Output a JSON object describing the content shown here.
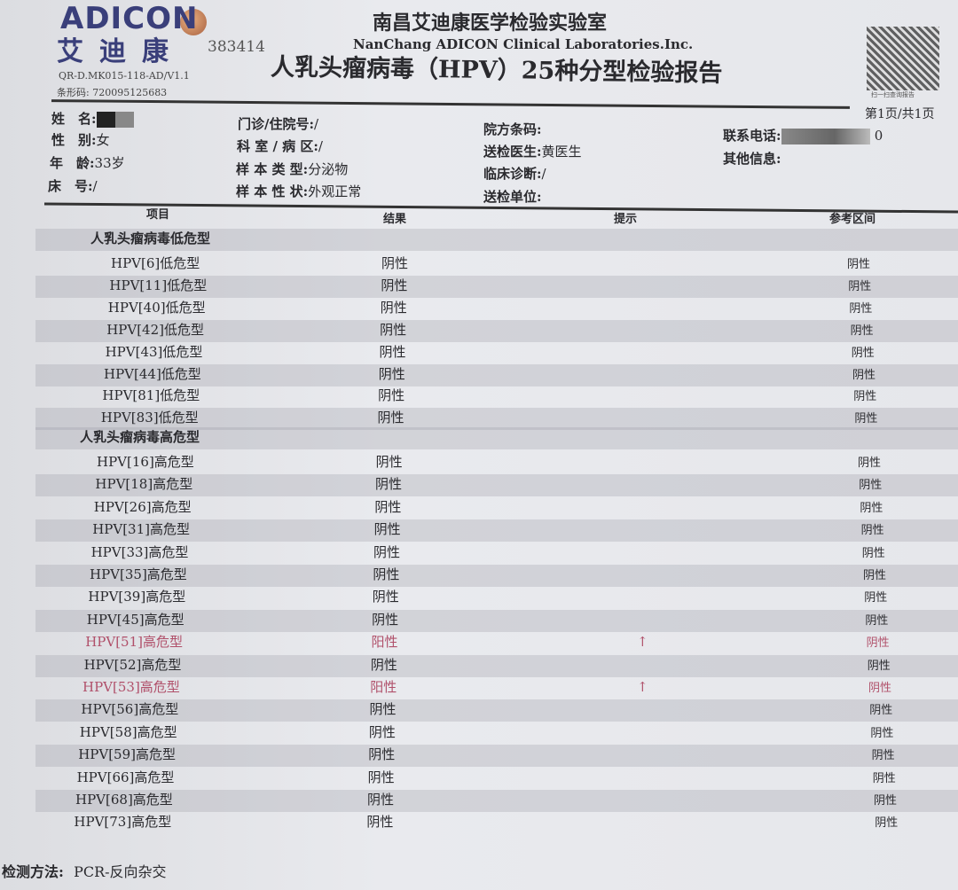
{
  "header": {
    "logo_en": "ADICON",
    "logo_cn": "艾迪康",
    "stamp_number": "383414",
    "form_code": "QR-D.MK015-118-AD/V1.1",
    "barcode": "条形码: 720095125683",
    "lab_cn": "南昌艾迪康医学检验实验室",
    "lab_en": "NanChang ADICON Clinical Laboratories.Inc.",
    "title": "人乳头瘤病毒（HPV）25种分型检验报告",
    "qr_caption": "扫一扫查询报告",
    "page": "第1页/共1页"
  },
  "patient": {
    "name_label": "姓　名:",
    "gender_label": "性　别:",
    "gender": "女",
    "age_label": "年　龄:",
    "age": "33岁",
    "bed_label": "床　号:",
    "bed": "/",
    "clinic_label": "门诊/住院号:",
    "clinic": "/",
    "dept_label": "科 室 / 病 区:",
    "dept": "/",
    "sample_type_label": "样 本 类 型:",
    "sample_type": "分泌物",
    "sample_state_label": "样 本 性 状:",
    "sample_state": "外观正常",
    "hosp_barcode_label": "院方条码:",
    "doctor_label": "送检医生:",
    "doctor": "黄医生",
    "diagnosis_label": "临床诊断:",
    "diagnosis": "/",
    "unit_label": "送检单位:",
    "phone_label": "联系电话:",
    "phone_tail": "0",
    "other_label": "其他信息:"
  },
  "table": {
    "columns": [
      "项目",
      "结果",
      "提示",
      "参考区间"
    ],
    "sections": [
      {
        "title": "人乳头瘤病毒低危型",
        "rows": [
          {
            "item": "HPV[6]低危型",
            "result": "阴性",
            "hint": "",
            "ref": "阴性"
          },
          {
            "item": "HPV[11]低危型",
            "result": "阴性",
            "hint": "",
            "ref": "阴性"
          },
          {
            "item": "HPV[40]低危型",
            "result": "阴性",
            "hint": "",
            "ref": "阴性"
          },
          {
            "item": "HPV[42]低危型",
            "result": "阴性",
            "hint": "",
            "ref": "阴性"
          },
          {
            "item": "HPV[43]低危型",
            "result": "阴性",
            "hint": "",
            "ref": "阴性"
          },
          {
            "item": "HPV[44]低危型",
            "result": "阴性",
            "hint": "",
            "ref": "阴性"
          },
          {
            "item": "HPV[81]低危型",
            "result": "阴性",
            "hint": "",
            "ref": "阴性"
          },
          {
            "item": "HPV[83]低危型",
            "result": "阴性",
            "hint": "",
            "ref": "阴性"
          }
        ]
      },
      {
        "title": "人乳头瘤病毒高危型",
        "rows": [
          {
            "item": "HPV[16]高危型",
            "result": "阴性",
            "hint": "",
            "ref": "阴性"
          },
          {
            "item": "HPV[18]高危型",
            "result": "阴性",
            "hint": "",
            "ref": "阴性"
          },
          {
            "item": "HPV[26]高危型",
            "result": "阴性",
            "hint": "",
            "ref": "阴性"
          },
          {
            "item": "HPV[31]高危型",
            "result": "阴性",
            "hint": "",
            "ref": "阴性"
          },
          {
            "item": "HPV[33]高危型",
            "result": "阴性",
            "hint": "",
            "ref": "阴性"
          },
          {
            "item": "HPV[35]高危型",
            "result": "阴性",
            "hint": "",
            "ref": "阴性"
          },
          {
            "item": "HPV[39]高危型",
            "result": "阴性",
            "hint": "",
            "ref": "阴性"
          },
          {
            "item": "HPV[45]高危型",
            "result": "阴性",
            "hint": "",
            "ref": "阴性"
          },
          {
            "item": "HPV[51]高危型",
            "result": "阳性",
            "hint": "↑",
            "ref": "阴性",
            "abnormal": true
          },
          {
            "item": "HPV[52]高危型",
            "result": "阴性",
            "hint": "",
            "ref": "阴性"
          },
          {
            "item": "HPV[53]高危型",
            "result": "阳性",
            "hint": "↑",
            "ref": "阴性",
            "abnormal": true
          },
          {
            "item": "HPV[56]高危型",
            "result": "阴性",
            "hint": "",
            "ref": "阴性"
          },
          {
            "item": "HPV[58]高危型",
            "result": "阴性",
            "hint": "",
            "ref": "阴性"
          },
          {
            "item": "HPV[59]高危型",
            "result": "阴性",
            "hint": "",
            "ref": "阴性"
          },
          {
            "item": "HPV[66]高危型",
            "result": "阴性",
            "hint": "",
            "ref": "阴性"
          },
          {
            "item": "HPV[68]高危型",
            "result": "阴性",
            "hint": "",
            "ref": "阴性"
          },
          {
            "item": "HPV[73]高危型",
            "result": "阴性",
            "hint": "",
            "ref": "阴性"
          }
        ]
      }
    ]
  },
  "footer": {
    "method_label": "检测方法:",
    "method": "PCR-反向杂交"
  },
  "colors": {
    "abnormal": "#b0506a",
    "logo": "#3a3f7a"
  }
}
